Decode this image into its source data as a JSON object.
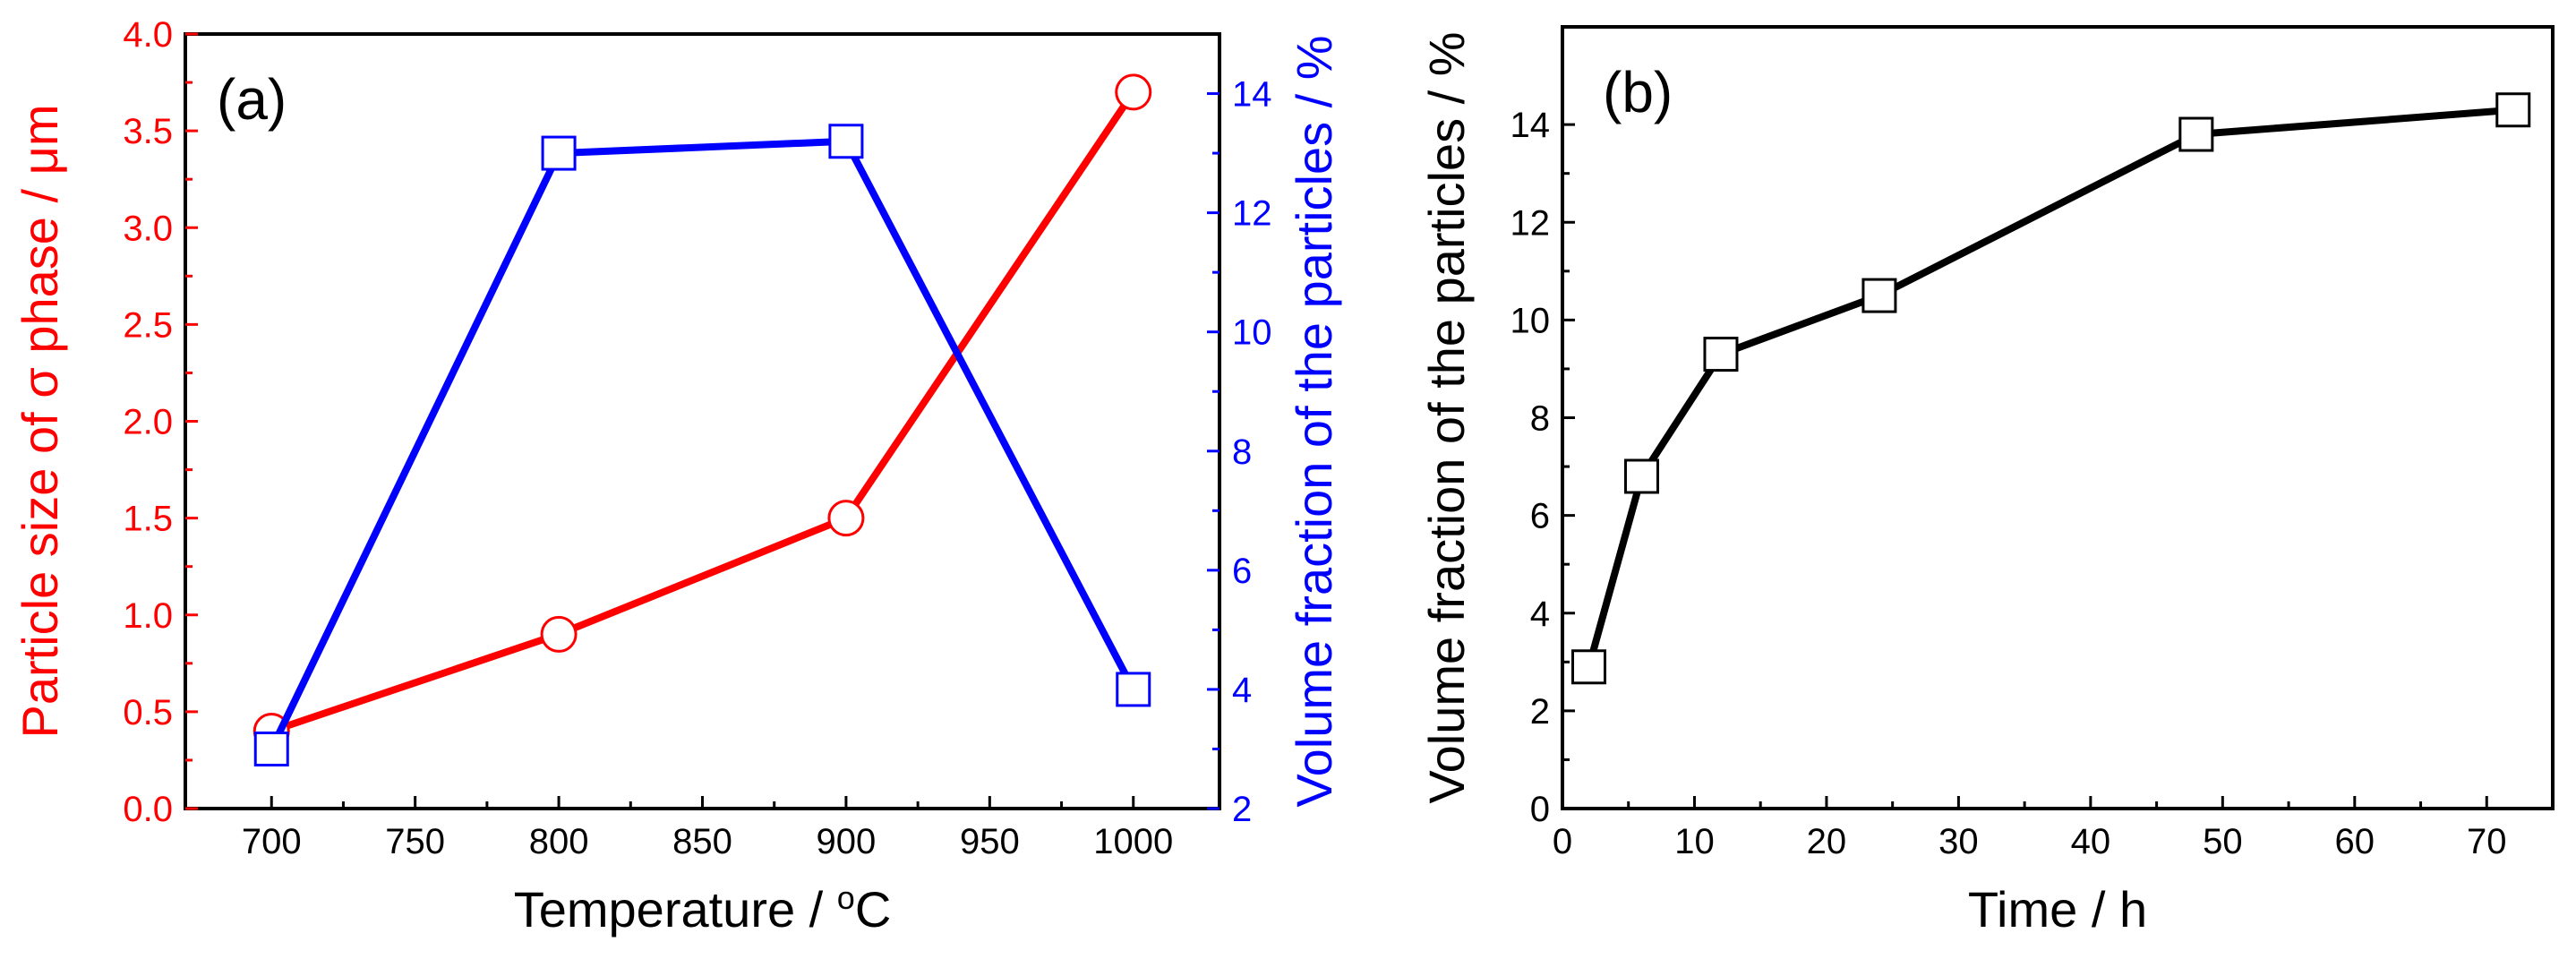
{
  "chart_data": [
    {
      "panel_label": "(a)",
      "type": "line",
      "xlabel": "Temperature / ",
      "xlabel_unit_sup": "o",
      "xlabel_unit": "C",
      "x_ticks": [
        "700",
        "750",
        "800",
        "850",
        "900",
        "950",
        "1000"
      ],
      "xlim": [
        670,
        1030
      ],
      "colors": {
        "left": "#ff0000",
        "right": "#0000ff",
        "frame": "#000000"
      },
      "y_left": {
        "label": "Particle size of σ phase / μm",
        "lim": [
          0,
          4
        ],
        "ticks": [
          "0.0",
          "0.5",
          "1.0",
          "1.5",
          "2.0",
          "2.5",
          "3.0",
          "3.5",
          "4.0"
        ]
      },
      "y_right": {
        "label": "Volume fraction of the particles  / %",
        "lim": [
          2,
          15
        ],
        "ticks": [
          "2",
          "4",
          "6",
          "8",
          "10",
          "12",
          "14"
        ]
      },
      "series": [
        {
          "name": "Particle size of σ phase",
          "axis": "left",
          "marker": "circle",
          "color": "#ff0000",
          "x": [
            700,
            800,
            900,
            1000
          ],
          "values": [
            0.4,
            0.9,
            1.5,
            3.7
          ]
        },
        {
          "name": "Volume fraction of the particles",
          "axis": "right",
          "marker": "square",
          "color": "#0000ff",
          "x": [
            700,
            800,
            900,
            1000
          ],
          "values": [
            3.0,
            13.0,
            13.2,
            4.0
          ]
        }
      ]
    },
    {
      "panel_label": "(b)",
      "type": "line",
      "xlabel": "Time / h",
      "x_ticks": [
        "0",
        "10",
        "20",
        "30",
        "40",
        "50",
        "60",
        "70"
      ],
      "xlim": [
        0,
        75
      ],
      "colors": {
        "line": "#000000"
      },
      "y_left": {
        "label": "Volume fraction of the particles  / %",
        "lim": [
          0,
          16
        ],
        "ticks": [
          "0",
          "2",
          "4",
          "6",
          "8",
          "10",
          "12",
          "14"
        ]
      },
      "series": [
        {
          "name": "Volume fraction of the particles",
          "axis": "left",
          "marker": "square",
          "color": "#000000",
          "x": [
            2,
            6,
            12,
            24,
            48,
            72
          ],
          "values": [
            2.9,
            6.8,
            9.3,
            10.5,
            13.8,
            14.3
          ]
        }
      ]
    }
  ]
}
